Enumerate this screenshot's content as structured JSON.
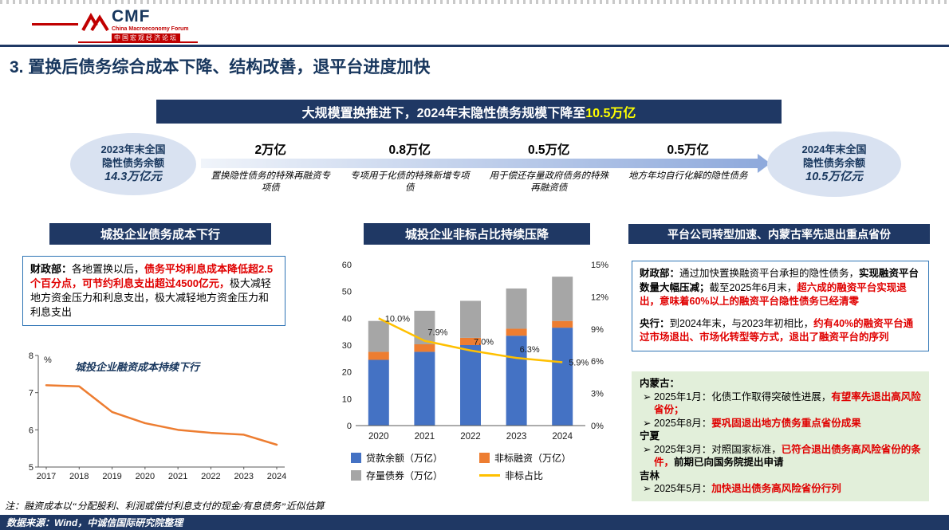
{
  "slide": {
    "logo": {
      "text": "CMF",
      "sub_en": "China Macroeconomy Forum",
      "sub_cn": "中国宏观经济论坛"
    },
    "title": "3. 置换后债务综合成本下降、结构改善，退平台进度加快",
    "note": "注：融资成本以“分配股利、利润或偿付利息支付的现金/有息债务”近似估算",
    "source": "数据来源：Wind，中诚信国际研究院整理"
  },
  "banner": {
    "main": "大规模置换推进下，2024年末隐性债务规模下降至",
    "highlight": "10.5万亿"
  },
  "flow": {
    "left_ellipse": {
      "l1": "2023年末全国",
      "l2": "隐性债务余额",
      "l3": "14.3万亿元"
    },
    "right_ellipse": {
      "l1": "2024年末全国",
      "l2": "隐性债务余额",
      "l3": "10.5万亿元"
    },
    "steps": [
      {
        "value": "2万亿",
        "desc": "置换隐性债务的特殊再融资专项债"
      },
      {
        "value": "0.8万亿",
        "desc": "专项用于化债的特殊新增专项债"
      },
      {
        "value": "0.5万亿",
        "desc": "用于偿还存量政府债务的特殊再融资债"
      },
      {
        "value": "0.5万亿",
        "desc": "地方年均自行化解的隐性债务"
      }
    ]
  },
  "left_panel": {
    "header": "城投企业债务成本下行",
    "mof_label": "财政部：",
    "t1": "各地置换以后，",
    "t2": "债务平均利息成本降低超2.5个百分点，可节约利息支出超过4500亿元，",
    "t3": "极大减轻地方资金压力和利息支出，极大减轻地方资金压力和利息支出"
  },
  "middle_panel": {
    "header": "城投企业非标占比持续压降"
  },
  "right_panel": {
    "header": "平台公司转型加速、内蒙古率先退出重点省份",
    "mof_label": "财政部：",
    "p1a": "通过加快置换融资平台承担的隐性债务，",
    "p1b": "实现融资平台数量大幅压减；",
    "p1c": "截至2025年6月末，",
    "p1d": "超六成的融资平台实现退出，意味着60%以上的融资平台隐性债务已经清零",
    "pboc_label": "央行：",
    "p2a": "到2024年末，与2023年初相比，",
    "p2b": "约有40%的融资平台通过市场退出、市场化转型等方式，退出了融资平台的序列",
    "green": {
      "bullet": "➢",
      "regions": [
        {
          "name": "内蒙古：",
          "bullets": [
            {
              "pre": "2025年1月：化债工作取得突破性进展，",
              "red": "有望率先退出高风险省份；",
              "post": ""
            },
            {
              "pre": "2025年8月：",
              "red": "要巩固退出地方债务重点省份成果",
              "post": ""
            }
          ]
        },
        {
          "name": "宁夏",
          "bullets": [
            {
              "pre": "2025年3月：对照国家标准，",
              "red": "已符合退出债务高风险省份的条件，",
              "post": "前期已向国务院提出申请"
            }
          ]
        },
        {
          "name": "吉林",
          "bullets": [
            {
              "pre": "2025年5月：",
              "red": "加快退出债务高风险省份行列",
              "post": ""
            }
          ]
        }
      ]
    }
  },
  "colors": {
    "navy": "#1F3864",
    "brand_red": "#C00000",
    "highlight_yellow": "#FFFF00",
    "text_red": "#E00000",
    "ellipse_blue": "#D9E2F1",
    "green_bg": "#E2EFDA",
    "box_border_blue": "#2E74B5"
  },
  "chart_data": [
    {
      "type": "line",
      "title": "城投企业融资成本持续下行",
      "ylabel": "%",
      "x": [
        "2017",
        "2018",
        "2019",
        "2020",
        "2021",
        "2022",
        "2023",
        "2024"
      ],
      "values": [
        7.2,
        7.17,
        6.48,
        6.18,
        6.0,
        5.92,
        5.87,
        5.6
      ],
      "ylim": [
        5,
        8
      ],
      "yticks": [
        5,
        6,
        7,
        8
      ],
      "line_color": "#ED7D31",
      "grid": false
    },
    {
      "type": "bar",
      "stacked": true,
      "categories": [
        "2020",
        "2021",
        "2022",
        "2023",
        "2024"
      ],
      "series": [
        {
          "name": "贷款余额（万亿）",
          "color": "#4472C4",
          "values": [
            24.5,
            27.5,
            30.0,
            33.5,
            36.5
          ]
        },
        {
          "name": "非标融资（万亿）",
          "color": "#ED7D31",
          "values": [
            3.0,
            2.8,
            2.7,
            2.6,
            2.5
          ]
        },
        {
          "name": "存量债券（万亿）",
          "color": "#A6A6A6",
          "values": [
            11.5,
            12.5,
            13.8,
            15.0,
            16.5
          ]
        }
      ],
      "line": {
        "name": "非标占比",
        "color": "#FFC000",
        "values": [
          10.0,
          7.9,
          7.0,
          6.3,
          5.9
        ],
        "labels": [
          "10.0%",
          "7.9%",
          "7.0%",
          "6.3%",
          "5.9%"
        ]
      },
      "ylim_left": [
        0,
        60
      ],
      "yticks_left": [
        0,
        10,
        20,
        30,
        40,
        50,
        60
      ],
      "ylim_right": [
        0,
        15
      ],
      "yticks_right": [
        "0%",
        "3%",
        "6%",
        "9%",
        "12%",
        "15%"
      ],
      "legend_position": "bottom",
      "grid": false
    }
  ]
}
